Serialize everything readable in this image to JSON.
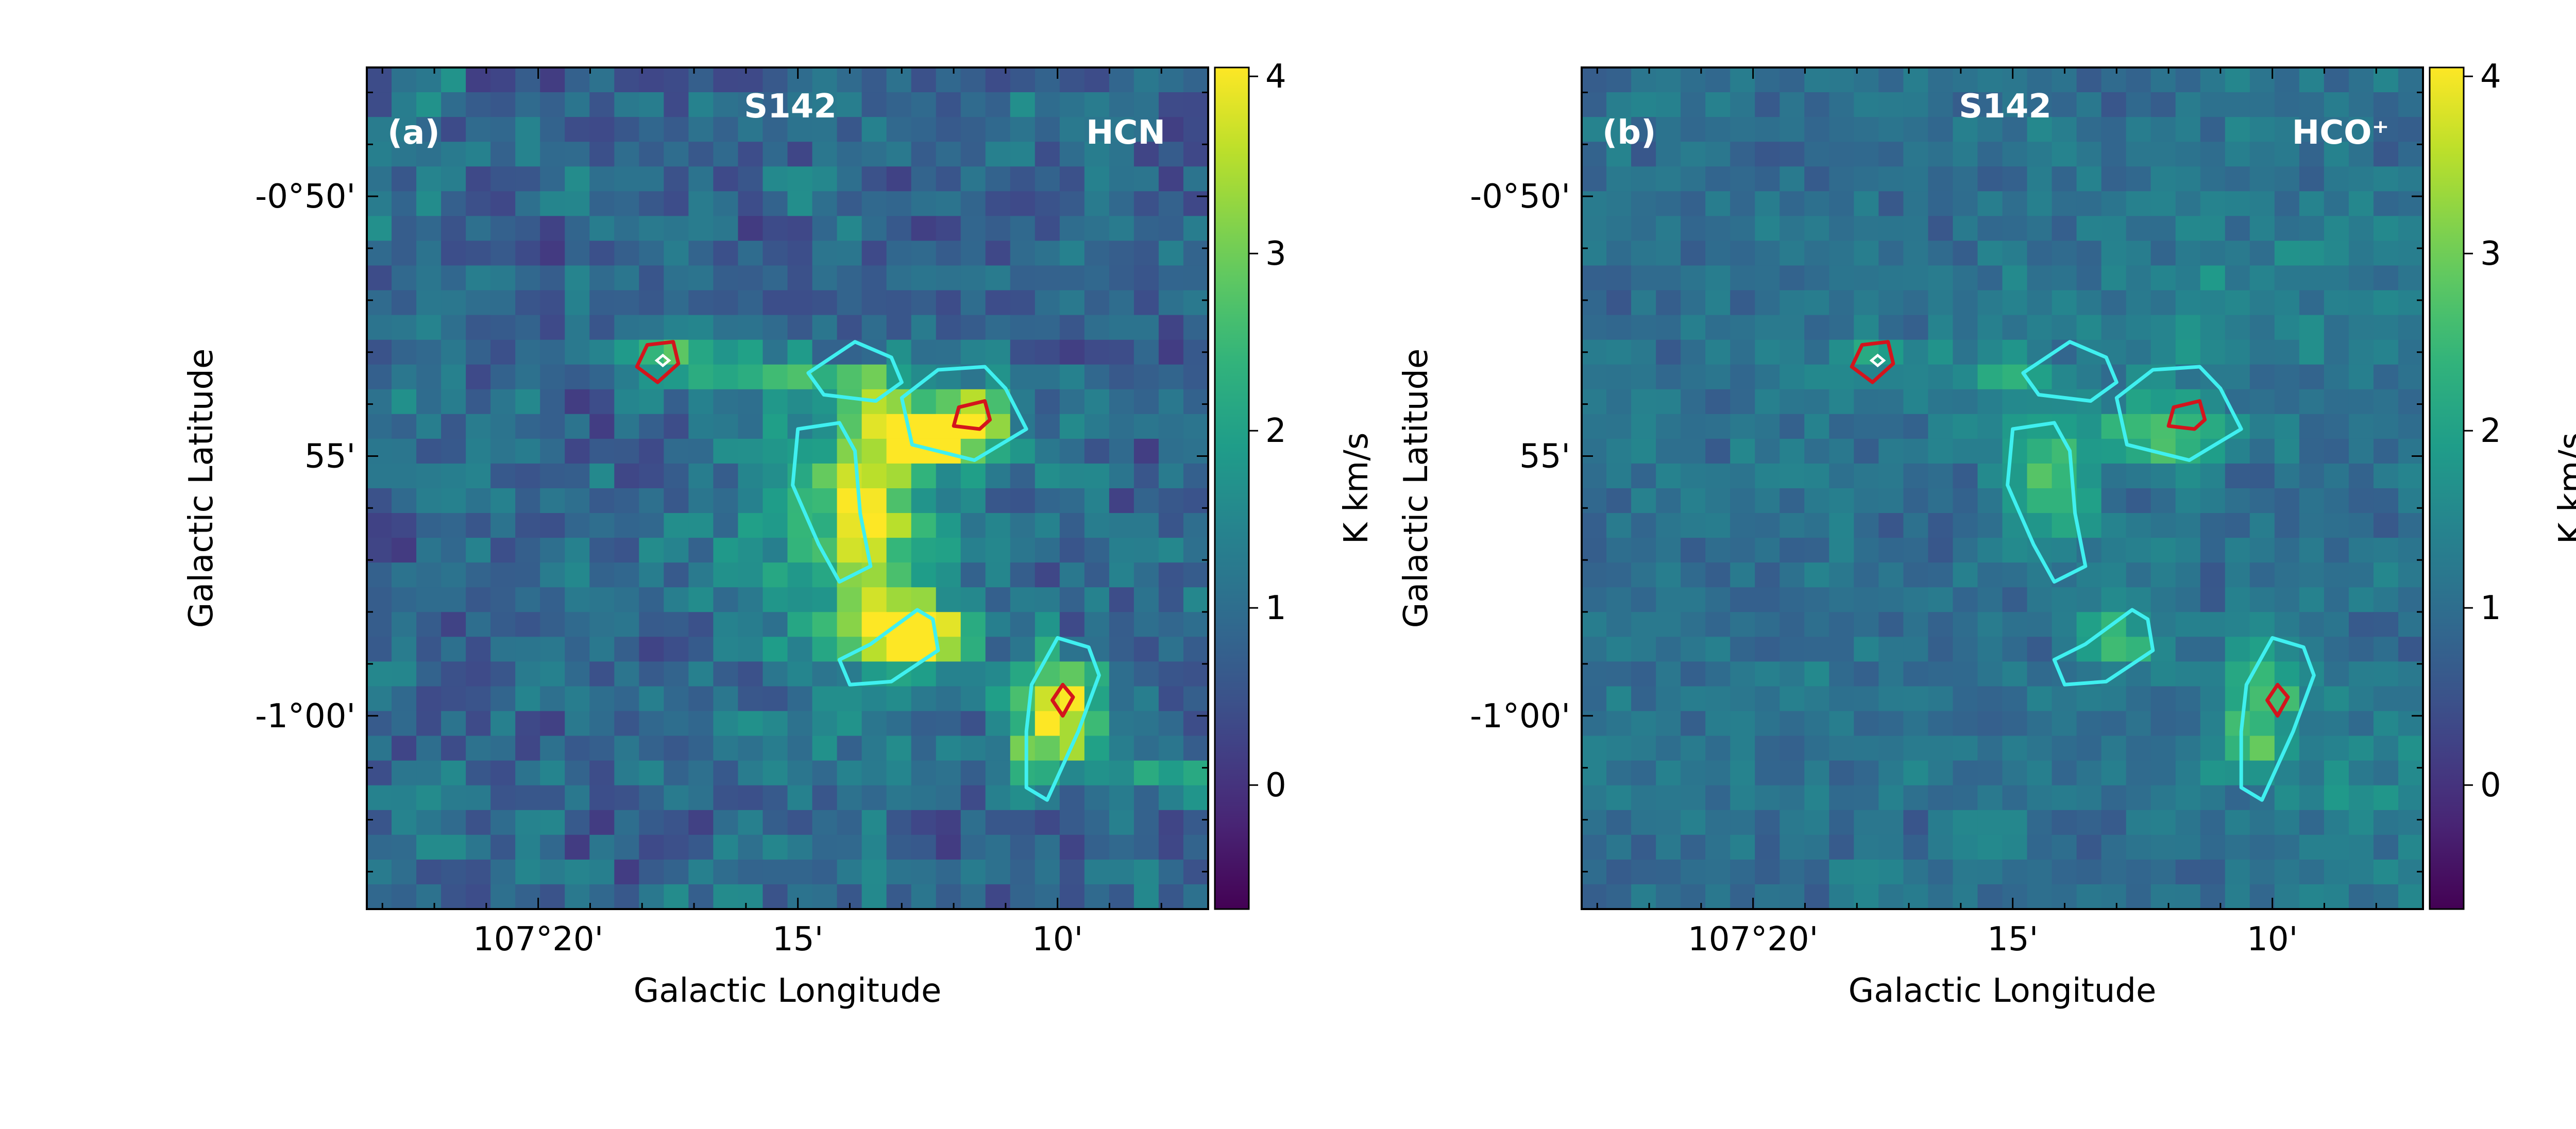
{
  "chart_data": [
    {
      "type": "heatmap",
      "panel_label": "(a)",
      "title": "S142",
      "tracer": "HCN",
      "xlabel": "Galactic Longitude",
      "ylabel": "Galactic Latitude",
      "x_ticks": [
        "107°20'",
        "15'",
        "10'"
      ],
      "x_tick_values_arcmin": [
        20,
        15,
        10
      ],
      "y_ticks": [
        "-0°50'",
        "55'",
        "-1°00'"
      ],
      "y_tick_values_deg": [
        -0.8333,
        -0.9167,
        -1.0
      ],
      "xlim_arcmin": [
        23.3,
        7.1
      ],
      "ylim_deg": [
        -0.792,
        -1.062
      ],
      "colorbar": {
        "label": "K km/s",
        "ticks": [
          "0",
          "1",
          "2",
          "3",
          "4"
        ],
        "tick_values": [
          0,
          1,
          2,
          3,
          4
        ],
        "range": [
          -0.7,
          4.05
        ],
        "colormap": "viridis"
      },
      "blobs": [
        {
          "l": 17.5,
          "b": -0.885,
          "amp": 1.6,
          "sl": 0.6,
          "sb": 0.005
        },
        {
          "l": 16.3,
          "b": -0.888,
          "amp": 1.4,
          "sl": 0.8,
          "sb": 0.005
        },
        {
          "l": 14.2,
          "b": -0.893,
          "amp": 1.8,
          "sl": 0.8,
          "sb": 0.006
        },
        {
          "l": 12.6,
          "b": -0.909,
          "amp": 3.0,
          "sl": 1.1,
          "sb": 0.008
        },
        {
          "l": 11.7,
          "b": -0.903,
          "amp": 1.6,
          "sl": 0.6,
          "sb": 0.007
        },
        {
          "l": 13.6,
          "b": -0.937,
          "amp": 2.2,
          "sl": 0.7,
          "sb": 0.018
        },
        {
          "l": 13.2,
          "b": -0.97,
          "amp": 2.4,
          "sl": 0.6,
          "sb": 0.007
        },
        {
          "l": 12.4,
          "b": -0.976,
          "amp": 3.3,
          "sl": 0.5,
          "sb": 0.006
        },
        {
          "l": 9.9,
          "b": -0.991,
          "amp": 3.0,
          "sl": 0.6,
          "sb": 0.008
        },
        {
          "l": 10.2,
          "b": -1.008,
          "amp": 2.7,
          "sl": 0.6,
          "sb": 0.008
        },
        {
          "l": 6.0,
          "b": -1.02,
          "amp": 1.3,
          "sl": 2.2,
          "sb": 0.005
        },
        {
          "l": 14.0,
          "b": -0.95,
          "amp": 1.0,
          "sl": 1.5,
          "sb": 0.03
        }
      ],
      "background": 0.9,
      "noise": 0.55,
      "cyan_contours": [
        [
          [
            14.8,
            -0.89
          ],
          [
            13.9,
            -0.88
          ],
          [
            13.2,
            -0.885
          ],
          [
            13.0,
            -0.893
          ],
          [
            13.5,
            -0.899
          ],
          [
            14.5,
            -0.897
          ]
        ],
        [
          [
            12.3,
            -0.889
          ],
          [
            11.4,
            -0.888
          ],
          [
            11.0,
            -0.895
          ],
          [
            10.6,
            -0.908
          ],
          [
            11.6,
            -0.918
          ],
          [
            12.8,
            -0.913
          ],
          [
            13.0,
            -0.898
          ]
        ],
        [
          [
            15.0,
            -0.908
          ],
          [
            14.2,
            -0.906
          ],
          [
            13.9,
            -0.915
          ],
          [
            13.8,
            -0.935
          ],
          [
            13.6,
            -0.952
          ],
          [
            14.2,
            -0.957
          ],
          [
            14.6,
            -0.945
          ],
          [
            15.1,
            -0.926
          ]
        ],
        [
          [
            13.6,
            -0.977
          ],
          [
            12.7,
            -0.966
          ],
          [
            12.4,
            -0.969
          ],
          [
            12.3,
            -0.979
          ],
          [
            13.2,
            -0.989
          ],
          [
            14.0,
            -0.99
          ],
          [
            14.2,
            -0.982
          ]
        ],
        [
          [
            10.5,
            -0.99
          ],
          [
            10.0,
            -0.975
          ],
          [
            9.4,
            -0.978
          ],
          [
            9.2,
            -0.987
          ],
          [
            9.6,
            -1.005
          ],
          [
            10.2,
            -1.027
          ],
          [
            10.6,
            -1.023
          ],
          [
            10.6,
            -1.005
          ]
        ]
      ],
      "red_contours": [
        [
          [
            17.9,
            -0.881
          ],
          [
            17.4,
            -0.88
          ],
          [
            17.3,
            -0.887
          ],
          [
            17.7,
            -0.893
          ],
          [
            18.1,
            -0.888
          ]
        ],
        [
          [
            11.9,
            -0.901
          ],
          [
            11.4,
            -0.899
          ],
          [
            11.3,
            -0.905
          ],
          [
            11.5,
            -0.908
          ],
          [
            12.0,
            -0.907
          ]
        ],
        [
          [
            9.9,
            -0.99
          ],
          [
            9.7,
            -0.994
          ],
          [
            9.9,
            -1.0
          ],
          [
            10.1,
            -0.995
          ]
        ]
      ],
      "white_markers": [
        [
          17.6,
          -0.886
        ]
      ]
    },
    {
      "type": "heatmap",
      "panel_label": "(b)",
      "title": "S142",
      "tracer": "HCO⁺",
      "xlabel": "Galactic Longitude",
      "ylabel": "Galactic Latitude",
      "x_ticks": [
        "107°20'",
        "15'",
        "10'"
      ],
      "x_tick_values_arcmin": [
        20,
        15,
        10
      ],
      "y_ticks": [
        "-0°50'",
        "55'",
        "-1°00'"
      ],
      "y_tick_values_deg": [
        -0.8333,
        -0.9167,
        -1.0
      ],
      "xlim_arcmin": [
        23.3,
        7.1
      ],
      "ylim_deg": [
        -0.792,
        -1.062
      ],
      "colorbar": {
        "label": "K km/s",
        "ticks": [
          "0",
          "1",
          "2",
          "3",
          "4"
        ],
        "tick_values": [
          0,
          1,
          2,
          3,
          4
        ],
        "range": [
          -0.7,
          4.05
        ],
        "colormap": "viridis"
      },
      "blobs": [
        {
          "l": 17.4,
          "b": -0.885,
          "amp": 1.0,
          "sl": 0.6,
          "sb": 0.005
        },
        {
          "l": 15.0,
          "b": -0.892,
          "amp": 1.1,
          "sl": 0.6,
          "sb": 0.005
        },
        {
          "l": 12.0,
          "b": -0.909,
          "amp": 1.9,
          "sl": 0.9,
          "sb": 0.007
        },
        {
          "l": 14.3,
          "b": -0.925,
          "amp": 1.6,
          "sl": 0.6,
          "sb": 0.014
        },
        {
          "l": 13.0,
          "b": -0.976,
          "amp": 1.8,
          "sl": 0.6,
          "sb": 0.006
        },
        {
          "l": 10.2,
          "b": -0.993,
          "amp": 2.0,
          "sl": 0.6,
          "sb": 0.009
        },
        {
          "l": 10.3,
          "b": -1.012,
          "amp": 1.4,
          "sl": 0.5,
          "sb": 0.006
        },
        {
          "l": 6.5,
          "b": -1.025,
          "amp": 0.7,
          "sl": 2.0,
          "sb": 0.01
        },
        {
          "l": 11.0,
          "b": -0.87,
          "amp": 0.4,
          "sl": 2.5,
          "sb": 0.02
        }
      ],
      "background": 1.05,
      "noise": 0.35,
      "cyan_contours": [
        [
          [
            14.8,
            -0.89
          ],
          [
            13.9,
            -0.88
          ],
          [
            13.2,
            -0.885
          ],
          [
            13.0,
            -0.893
          ],
          [
            13.5,
            -0.899
          ],
          [
            14.5,
            -0.897
          ]
        ],
        [
          [
            12.3,
            -0.889
          ],
          [
            11.4,
            -0.888
          ],
          [
            11.0,
            -0.895
          ],
          [
            10.6,
            -0.908
          ],
          [
            11.6,
            -0.918
          ],
          [
            12.8,
            -0.913
          ],
          [
            13.0,
            -0.898
          ]
        ],
        [
          [
            15.0,
            -0.908
          ],
          [
            14.2,
            -0.906
          ],
          [
            13.9,
            -0.915
          ],
          [
            13.8,
            -0.935
          ],
          [
            13.6,
            -0.952
          ],
          [
            14.2,
            -0.957
          ],
          [
            14.6,
            -0.945
          ],
          [
            15.1,
            -0.926
          ]
        ],
        [
          [
            13.6,
            -0.977
          ],
          [
            12.7,
            -0.966
          ],
          [
            12.4,
            -0.969
          ],
          [
            12.3,
            -0.979
          ],
          [
            13.2,
            -0.989
          ],
          [
            14.0,
            -0.99
          ],
          [
            14.2,
            -0.982
          ]
        ],
        [
          [
            10.5,
            -0.99
          ],
          [
            10.0,
            -0.975
          ],
          [
            9.4,
            -0.978
          ],
          [
            9.2,
            -0.987
          ],
          [
            9.6,
            -1.005
          ],
          [
            10.2,
            -1.027
          ],
          [
            10.6,
            -1.023
          ],
          [
            10.6,
            -1.005
          ]
        ]
      ],
      "red_contours": [
        [
          [
            17.9,
            -0.881
          ],
          [
            17.4,
            -0.88
          ],
          [
            17.3,
            -0.887
          ],
          [
            17.7,
            -0.893
          ],
          [
            18.1,
            -0.888
          ]
        ],
        [
          [
            11.9,
            -0.901
          ],
          [
            11.4,
            -0.899
          ],
          [
            11.3,
            -0.905
          ],
          [
            11.5,
            -0.908
          ],
          [
            12.0,
            -0.907
          ]
        ],
        [
          [
            9.9,
            -0.99
          ],
          [
            9.7,
            -0.994
          ],
          [
            9.9,
            -1.0
          ],
          [
            10.1,
            -0.995
          ]
        ]
      ],
      "white_markers": [
        [
          17.6,
          -0.886
        ]
      ]
    }
  ],
  "colors": {
    "cyan_contour": "#3ff0f0",
    "red_contour": "#d4141c",
    "axes": "#000000",
    "overlay_text": "#ffffff"
  }
}
